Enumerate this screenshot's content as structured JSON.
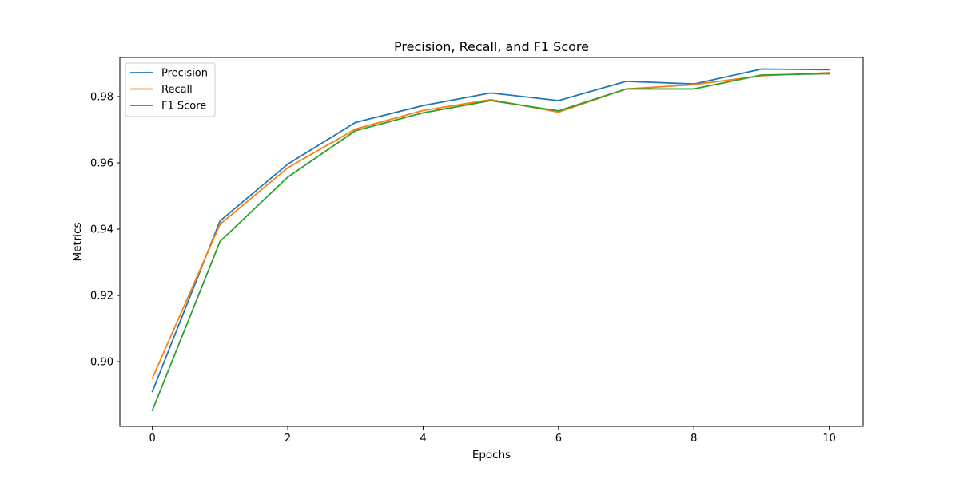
{
  "chart_data": {
    "type": "line",
    "title": "Precision, Recall, and F1 Score",
    "xlabel": "Epochs",
    "ylabel": "Metrics",
    "x": [
      0,
      1,
      2,
      3,
      4,
      5,
      6,
      7,
      8,
      9,
      10
    ],
    "xlim": [
      -0.48,
      10.5
    ],
    "ylim": [
      0.8805,
      0.9918
    ],
    "xticks": [
      0,
      2,
      4,
      6,
      8,
      10
    ],
    "xtick_labels": [
      "0",
      "2",
      "4",
      "6",
      "8",
      "10"
    ],
    "yticks": [
      0.9,
      0.92,
      0.94,
      0.96,
      0.98
    ],
    "ytick_labels": [
      "0.90",
      "0.92",
      "0.94",
      "0.96",
      "0.98"
    ],
    "grid": false,
    "legend_position": "top-left",
    "series": [
      {
        "name": "Precision",
        "color": "#1f77b4",
        "values": [
          0.891,
          0.9425,
          0.9596,
          0.9722,
          0.9773,
          0.9811,
          0.9788,
          0.9846,
          0.9838,
          0.9883,
          0.9881
        ]
      },
      {
        "name": "Recall",
        "color": "#ff7f0e",
        "values": [
          0.895,
          0.9415,
          0.9585,
          0.9702,
          0.9758,
          0.9791,
          0.9753,
          0.9823,
          0.9836,
          0.9863,
          0.9872
        ]
      },
      {
        "name": "F1 Score",
        "color": "#2ca02c",
        "values": [
          0.8853,
          0.9363,
          0.9557,
          0.9697,
          0.9751,
          0.9788,
          0.9757,
          0.9823,
          0.9823,
          0.9865,
          0.9869
        ]
      }
    ]
  }
}
